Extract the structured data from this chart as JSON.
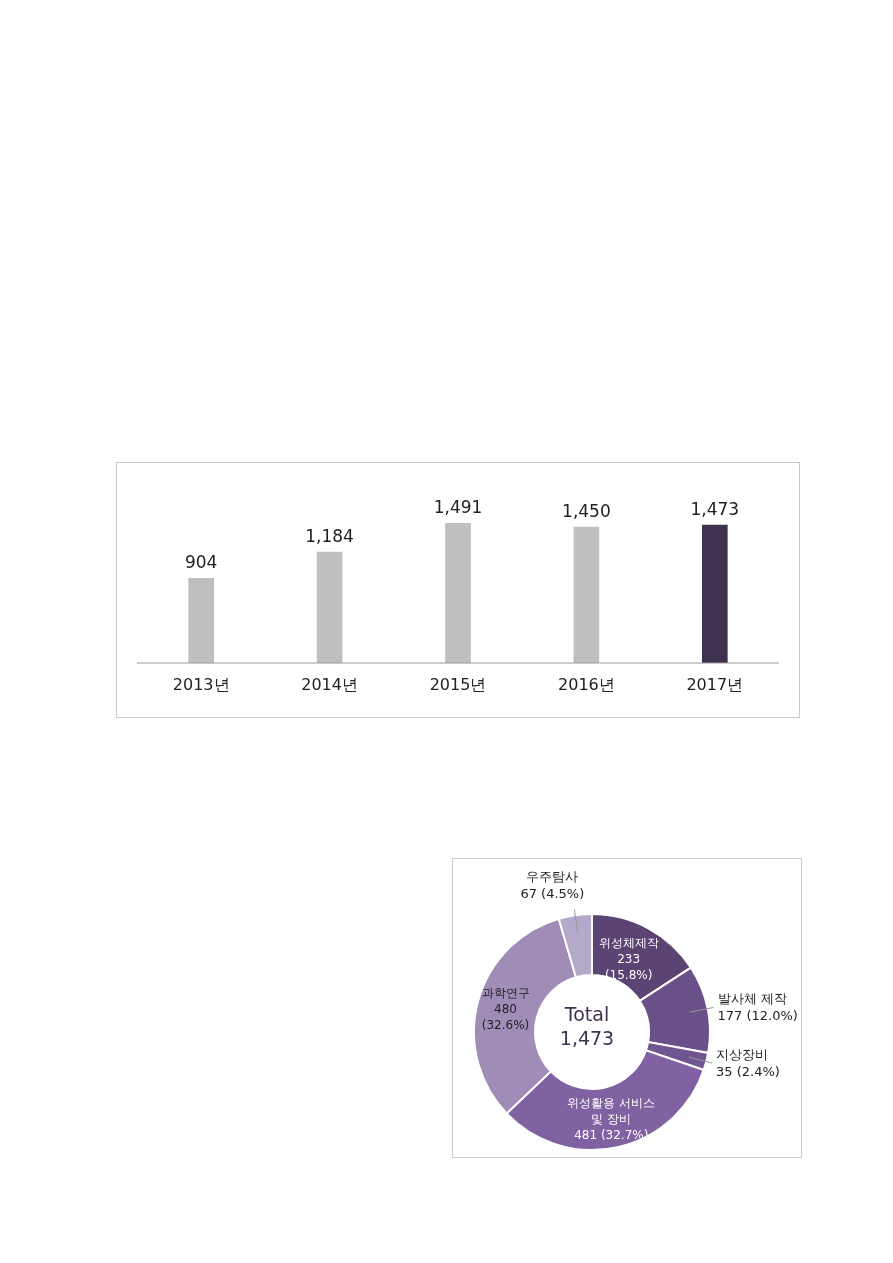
{
  "chart_data": [
    {
      "type": "bar",
      "categories": [
        "2013년",
        "2014년",
        "2015년",
        "2016년",
        "2017년"
      ],
      "values": [
        904,
        1184,
        1491,
        1450,
        1473
      ],
      "colors": [
        "#bfbfbf",
        "#bfbfbf",
        "#bfbfbf",
        "#bfbfbf",
        "#3f3150"
      ],
      "value_labels": [
        "904",
        "1,184",
        "1,491",
        "1,450",
        "1,473"
      ]
    },
    {
      "type": "donut",
      "categories": [
        "위성체제작",
        "발사체 제작",
        "지상장비",
        "위성활용 서비스 및 장비",
        "과학연구",
        "우주탐사"
      ],
      "values": [
        233,
        177,
        35,
        481,
        480,
        67
      ],
      "value_labels": [
        "233 (15.8%)",
        "177 (12.0%)",
        "35 (2.4%)",
        "481 (32.7%)",
        "480 (32.6%)",
        "67 (4.5%)"
      ],
      "colors": [
        "#5b4373",
        "#6a5088",
        "#6f5592",
        "#8062a2",
        "#9f8db7",
        "#b5a9c9"
      ],
      "annotations": [
        "Total",
        "1,473"
      ]
    }
  ]
}
